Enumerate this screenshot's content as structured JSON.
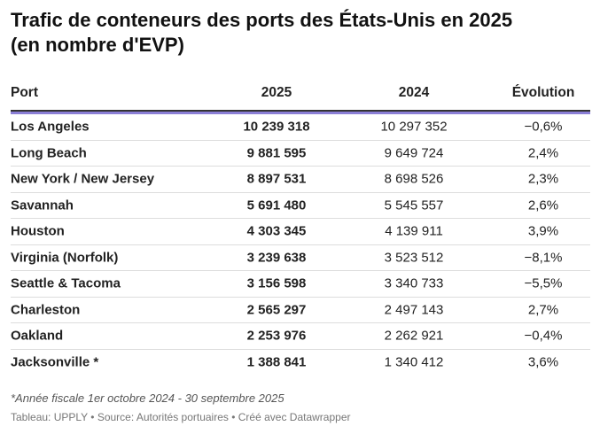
{
  "header": {
    "title": "Trafic de conteneurs des ports des États-Unis en 2025",
    "subtitle": "(en nombre d'EVP)"
  },
  "table": {
    "columns": [
      "Port",
      "2025",
      "2024",
      "Évolution"
    ],
    "rows": [
      [
        "Los Angeles",
        "10 239 318",
        "10 297 352",
        "−0,6%"
      ],
      [
        "Long Beach",
        "9 881 595",
        "9 649 724",
        "2,4%"
      ],
      [
        "New York / New Jersey",
        "8 897 531",
        "8 698 526",
        "2,3%"
      ],
      [
        "Savannah",
        "5 691 480",
        "5 545 557",
        "2,6%"
      ],
      [
        "Houston",
        "4 303 345",
        "4 139 911",
        "3,9%"
      ],
      [
        "Virginia (Norfolk)",
        "3 239 638",
        "3 523 512",
        "−8,1%"
      ],
      [
        "Seattle & Tacoma",
        "3 156 598",
        "3 340 733",
        "−5,5%"
      ],
      [
        "Charleston",
        "2 565 297",
        "2 497 143",
        "2,7%"
      ],
      [
        "Oakland",
        "2 253 976",
        "2 262 921",
        "−0,4%"
      ],
      [
        "Jacksonville *",
        "1 388 841",
        "1 340 412",
        "3,6%"
      ]
    ]
  },
  "footer": {
    "note": "*Année fiscale 1er octobre 2024 - 30 septembre 2025",
    "source": "Tableau: UPPLY • Source: Autorités portuaires • Créé avec Datawrapper"
  }
}
